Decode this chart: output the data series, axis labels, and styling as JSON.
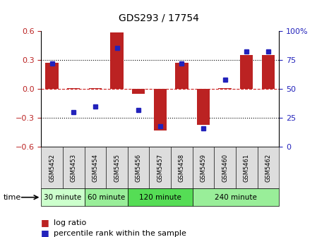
{
  "title": "GDS293 / 17754",
  "samples": [
    "GSM5452",
    "GSM5453",
    "GSM5454",
    "GSM5455",
    "GSM5456",
    "GSM5457",
    "GSM5458",
    "GSM5459",
    "GSM5460",
    "GSM5461",
    "GSM5462"
  ],
  "log_ratio": [
    0.27,
    0.01,
    0.01,
    0.58,
    -0.05,
    -0.43,
    0.27,
    -0.37,
    0.01,
    0.35,
    0.35
  ],
  "percentile": [
    72,
    30,
    35,
    85,
    32,
    18,
    72,
    16,
    58,
    82,
    82
  ],
  "ylim_left": [
    -0.6,
    0.6
  ],
  "ylim_right": [
    0,
    100
  ],
  "yticks_left": [
    -0.6,
    -0.3,
    0.0,
    0.3,
    0.6
  ],
  "yticks_right": [
    0,
    25,
    50,
    75,
    100
  ],
  "bar_color": "#bb2222",
  "dot_color": "#2222bb",
  "zero_line_color": "#cc2222",
  "time_groups": [
    {
      "label": "30 minute",
      "start": 0,
      "end": 1,
      "color": "#ccffcc"
    },
    {
      "label": "60 minute",
      "start": 2,
      "end": 3,
      "color": "#99ee99"
    },
    {
      "label": "120 minute",
      "start": 4,
      "end": 6,
      "color": "#55dd55"
    },
    {
      "label": "240 minute",
      "start": 7,
      "end": 10,
      "color": "#99ee99"
    }
  ],
  "legend_bar_label": "log ratio",
  "legend_dot_label": "percentile rank within the sample",
  "bg_color": "#ffffff",
  "tick_label_color_left": "#bb2222",
  "tick_label_color_right": "#2222bb",
  "plot_bg": "#ffffff",
  "x_tick_bg": "#dddddd"
}
